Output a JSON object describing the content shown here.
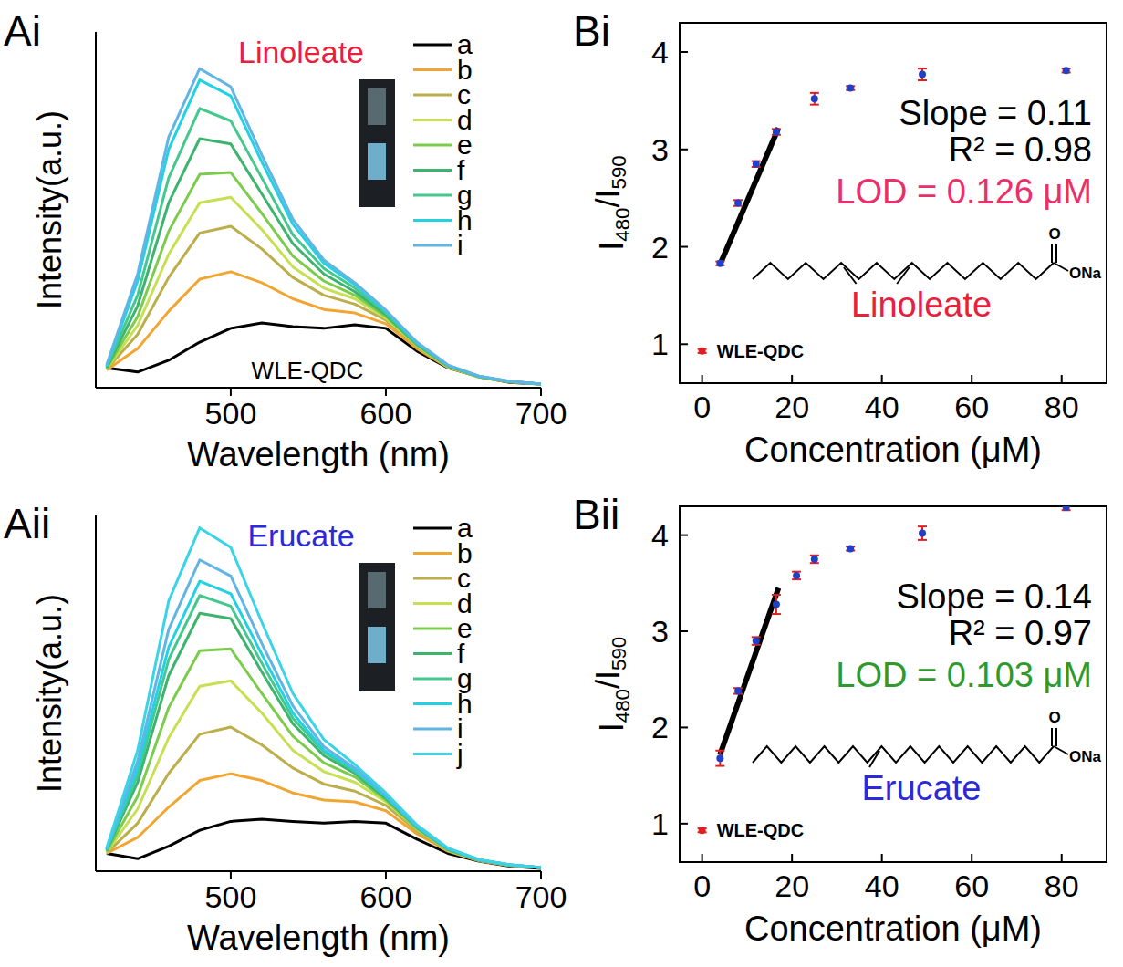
{
  "chart_data": [
    {
      "panel": "Ai",
      "type": "line",
      "x_label": "Wavelength (nm)",
      "y_label": "Intensity(a.u.)",
      "xlim": [
        413,
        700
      ],
      "xticks": [
        500,
        600,
        700
      ],
      "ylim": [
        0,
        100
      ],
      "yticks": [],
      "tick_labels": "x",
      "legend": "upper right",
      "annotations": [
        {
          "text": "Linoleate",
          "color": "#e8203c"
        },
        {
          "text": "WLE-QDC",
          "color": "#000000"
        }
      ],
      "x": [
        420,
        440,
        460,
        480,
        500,
        520,
        540,
        560,
        580,
        600,
        620,
        640,
        660,
        680,
        700
      ],
      "series": [
        {
          "name": "a",
          "color": "#000000",
          "values": [
            5.6,
            4.4,
            7.7,
            12.8,
            16.7,
            18.2,
            17.2,
            16.7,
            17.7,
            16.7,
            10.3,
            5.6,
            3.1,
            1.5,
            1.0
          ]
        },
        {
          "name": "b",
          "color": "#f2a632",
          "values": [
            5.0,
            11,
            21.5,
            30.5,
            32.6,
            29.5,
            25,
            22,
            21,
            18,
            11,
            5.7,
            3.0,
            1.6,
            1.0
          ]
        },
        {
          "name": "c",
          "color": "#bcae4a",
          "values": [
            5.2,
            15,
            31,
            43.5,
            45.4,
            39,
            31,
            26,
            23.5,
            19,
            11.5,
            5.8,
            3.0,
            1.6,
            1.0
          ]
        },
        {
          "name": "d",
          "color": "#c6e052",
          "values": [
            5.3,
            17.5,
            37.5,
            52,
            53.5,
            44.5,
            34,
            28,
            25,
            19.5,
            11.8,
            5.9,
            3.1,
            1.7,
            1.0
          ]
        },
        {
          "name": "e",
          "color": "#7ccc4c",
          "values": [
            5.4,
            20,
            44,
            60,
            60.5,
            49,
            37,
            30,
            26,
            20,
            12,
            6,
            3.1,
            1.7,
            1.0
          ]
        },
        {
          "name": "f",
          "color": "#3cb46e",
          "values": [
            5.6,
            23,
            52,
            70,
            68.5,
            54.5,
            40.5,
            32,
            27,
            20.5,
            12.2,
            6.1,
            3.1,
            1.7,
            1.0
          ]
        },
        {
          "name": "g",
          "color": "#44c88e",
          "values": [
            5.8,
            26,
            59,
            78.5,
            75,
            59,
            43,
            33.5,
            28,
            21,
            12.4,
            6.2,
            3.2,
            1.8,
            1.0
          ]
        },
        {
          "name": "h",
          "color": "#22d2e2",
          "values": [
            6.0,
            30,
            67,
            86.5,
            82,
            63.5,
            46,
            35,
            29,
            21.5,
            12.6,
            6.3,
            3.2,
            1.8,
            1.0
          ]
        },
        {
          "name": "i",
          "color": "#62b4e4",
          "values": [
            6.4,
            32,
            70.5,
            89.7,
            84.6,
            65.4,
            47.4,
            35.9,
            29.5,
            21.8,
            12.8,
            6.4,
            3.3,
            1.8,
            1.0
          ]
        }
      ]
    },
    {
      "panel": "Bi",
      "type": "scatter",
      "x_label": "Concentration (μM)",
      "y_label": "I480/I590",
      "xlim": [
        -5,
        90
      ],
      "xticks": [
        0,
        20,
        40,
        60,
        80
      ],
      "ylim": [
        0.6,
        4.3
      ],
      "yticks": [
        1,
        2,
        3,
        4
      ],
      "series": [
        {
          "name": "WLE-QDC",
          "color": "#e02020",
          "x": [
            0
          ],
          "values": [
            0.93
          ],
          "errors": [
            0.02
          ]
        },
        {
          "color": "#2040c8",
          "x": [
            4,
            8,
            12,
            16.5,
            25,
            33,
            49,
            81
          ],
          "values": [
            1.83,
            2.45,
            2.85,
            3.18,
            3.52,
            3.63,
            3.77,
            3.81
          ],
          "errors": [
            0.02,
            0.03,
            0.03,
            0.03,
            0.06,
            0.02,
            0.06,
            0.02
          ]
        }
      ],
      "fit": {
        "x": [
          4,
          17
        ],
        "values": [
          1.82,
          3.22
        ],
        "color": "#000000"
      },
      "structure": {
        "labels": [
          "O",
          "ONa"
        ],
        "carbons": 18,
        "double_bonds": [
          5,
          8
        ]
      },
      "annotations": [
        {
          "text": "Slope = 0.11",
          "color": "#000000"
        },
        {
          "text": "R² = 0.98",
          "color": "#000000"
        },
        {
          "text": "LOD = 0.126 μM",
          "color": "#e8306a"
        },
        {
          "text": "Linoleate",
          "color": "#e8203c"
        }
      ]
    },
    {
      "panel": "Aii",
      "type": "line",
      "x_label": "Wavelength (nm)",
      "y_label": "Intensity(a.u.)",
      "xlim": [
        413,
        700
      ],
      "xticks": [
        500,
        600,
        700
      ],
      "ylim": [
        0,
        100
      ],
      "yticks": [],
      "tick_labels": "x",
      "legend": "upper right",
      "annotations": [
        {
          "text": "Erucate",
          "color": "#2a2ad8"
        }
      ],
      "x": [
        420,
        440,
        460,
        480,
        500,
        520,
        540,
        560,
        580,
        600,
        620,
        640,
        660,
        680,
        700
      ],
      "series": [
        {
          "name": "a",
          "color": "#000000",
          "values": [
            5,
            3.5,
            7,
            11.5,
            14,
            14.6,
            14,
            13.5,
            14,
            13.5,
            9,
            5,
            2.8,
            1.4,
            0.8
          ]
        },
        {
          "name": "b",
          "color": "#f2a632",
          "values": [
            5.0,
            9.5,
            18,
            25.5,
            27.4,
            25.5,
            22,
            20,
            19.5,
            17,
            10.5,
            5.6,
            2.9,
            1.6,
            1.0
          ]
        },
        {
          "name": "c",
          "color": "#bcae4a",
          "values": [
            5.1,
            13.5,
            27.5,
            38.5,
            40.5,
            35.5,
            29,
            24.5,
            22.5,
            18.5,
            11.3,
            5.8,
            3,
            1.6,
            1.0
          ]
        },
        {
          "name": "d",
          "color": "#c6e052",
          "values": [
            5.3,
            17.5,
            37.5,
            52,
            53.5,
            44.5,
            34,
            28,
            25,
            19.5,
            11.8,
            5.9,
            3.1,
            1.7,
            1.0
          ]
        },
        {
          "name": "e",
          "color": "#7ccc4c",
          "values": [
            5.5,
            21,
            46,
            62,
            62.5,
            50,
            38,
            30.5,
            26.5,
            20,
            12,
            6,
            3.1,
            1.7,
            1.0
          ]
        },
        {
          "name": "f",
          "color": "#3cb46e",
          "values": [
            5.8,
            25,
            55,
            72.5,
            71,
            56,
            41.5,
            32.5,
            27.5,
            20.5,
            12.3,
            6.1,
            3.1,
            1.7,
            1.0
          ]
        },
        {
          "name": "g",
          "color": "#44c88e",
          "values": [
            6.0,
            27,
            59.5,
            77.5,
            74.5,
            58.5,
            43,
            33.5,
            28,
            21,
            12.4,
            6.2,
            3.2,
            1.8,
            1.0
          ]
        },
        {
          "name": "h",
          "color": "#22d2e2",
          "values": [
            6.1,
            29,
            63,
            81.5,
            78,
            61,
            44.5,
            34,
            28.5,
            21,
            12.5,
            6.3,
            3.2,
            1.8,
            1.0
          ]
        },
        {
          "name": "i",
          "color": "#62b4e4",
          "values": [
            6.3,
            31,
            68,
            87.5,
            83,
            64,
            46.5,
            35,
            29,
            21.5,
            12.7,
            6.4,
            3.2,
            1.8,
            1.0
          ]
        },
        {
          "name": "j",
          "color": "#3ad4e6",
          "values": [
            6.5,
            34,
            76,
            96.5,
            91,
            70,
            50,
            37,
            30,
            22,
            13,
            6.5,
            3.3,
            1.8,
            1.0
          ]
        }
      ]
    },
    {
      "panel": "Bii",
      "type": "scatter",
      "x_label": "Concentration (μM)",
      "y_label": "I480/I590",
      "xlim": [
        -5,
        90
      ],
      "xticks": [
        0,
        20,
        40,
        60,
        80
      ],
      "ylim": [
        0.6,
        4.3
      ],
      "yticks": [
        1,
        2,
        3,
        4
      ],
      "series": [
        {
          "name": "WLE-QDC",
          "color": "#e02020",
          "x": [
            0
          ],
          "values": [
            0.93
          ],
          "errors": [
            0.02
          ]
        },
        {
          "color": "#2040c8",
          "x": [
            4,
            8,
            12,
            16.5,
            21,
            25,
            33,
            49,
            81
          ],
          "values": [
            1.68,
            2.38,
            2.9,
            3.28,
            3.58,
            3.75,
            3.86,
            4.02,
            4.29
          ],
          "errors": [
            0.08,
            0.03,
            0.04,
            0.1,
            0.04,
            0.04,
            0.02,
            0.07,
            0.03
          ]
        }
      ],
      "fit": {
        "x": [
          4,
          17
        ],
        "values": [
          1.72,
          3.45
        ],
        "color": "#000000"
      },
      "structure": {
        "labels": [
          "O",
          "ONa"
        ],
        "carbons": 22,
        "double_bonds": [
          8
        ]
      },
      "annotations": [
        {
          "text": "Slope = 0.14",
          "color": "#000000"
        },
        {
          "text": "R² = 0.97",
          "color": "#000000"
        },
        {
          "text": "LOD = 0.103 μM",
          "color": "#2e9a2e"
        },
        {
          "text": "Erucate",
          "color": "#2a2ad8"
        }
      ]
    }
  ]
}
